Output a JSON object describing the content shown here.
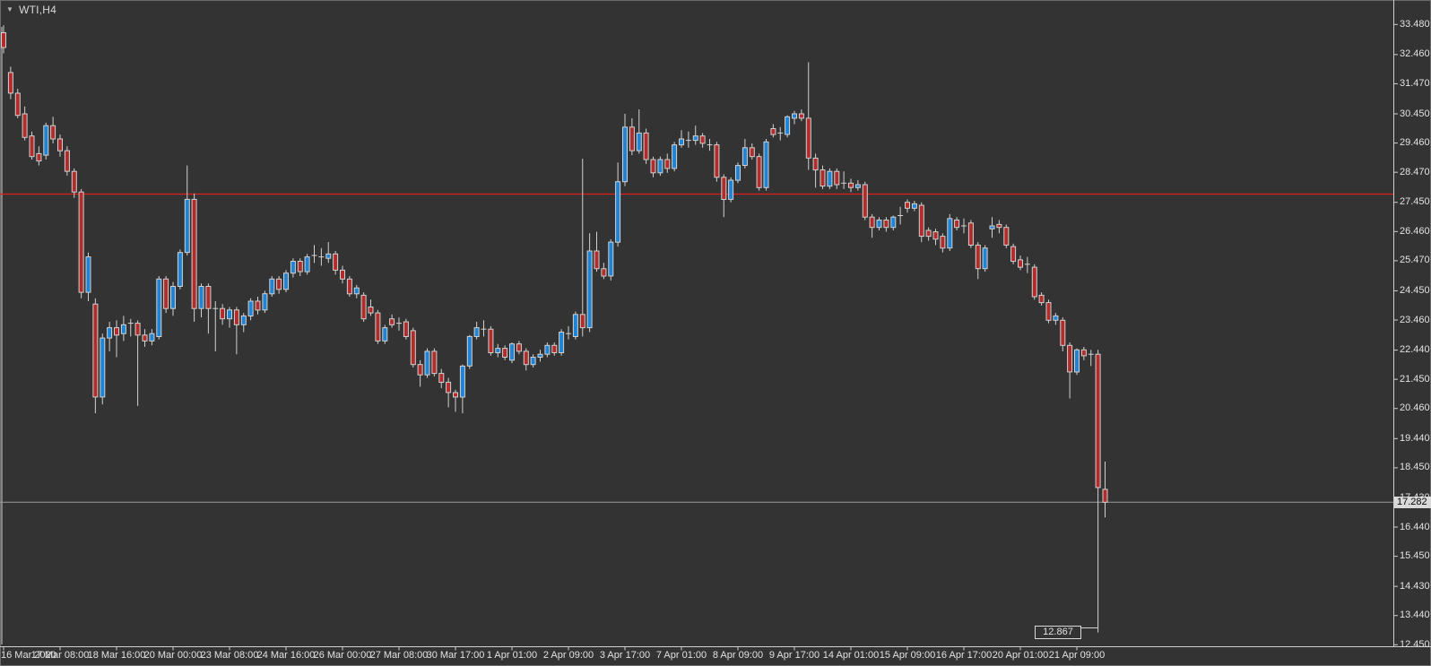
{
  "window": {
    "symbol_label": "WTI,H4",
    "dropdown_icon": "▼"
  },
  "colors": {
    "background": "#333333",
    "bull_body": "#1f83d6",
    "bear_body": "#b22c2c",
    "wick": "#d2d2d2",
    "axis_line": "#cfcfcf",
    "axis_text": "#e2e2e2",
    "red_line": "#e01f1f",
    "bid_line": "#9a9a9a",
    "badge_bg": "#d9d9d9",
    "badge_text": "#000000"
  },
  "price_axis": {
    "labels": [
      "33.480",
      "32.460",
      "31.470",
      "30.450",
      "29.460",
      "28.470",
      "27.450",
      "26.460",
      "25.470",
      "24.450",
      "23.460",
      "22.440",
      "21.450",
      "20.460",
      "19.440",
      "18.450",
      "17.430",
      "16.440",
      "15.450",
      "14.430",
      "13.440",
      "12.450"
    ]
  },
  "time_axis": {
    "labels": [
      "16 Mar 2020",
      "17 Mar 08:00",
      "18 Mar 16:00",
      "20 Mar 00:00",
      "23 Mar 08:00",
      "24 Mar 16:00",
      "26 Mar 00:00",
      "27 Mar 08:00",
      "30 Mar 17:00",
      "1 Apr 01:00",
      "2 Apr 09:00",
      "3 Apr 17:00",
      "7 Apr 01:00",
      "8 Apr 09:00",
      "9 Apr 17:00",
      "14 Apr 01:00",
      "15 Apr 09:00",
      "16 Apr 17:00",
      "20 Apr 01:00",
      "21 Apr 09:00"
    ]
  },
  "badge": {
    "value": "17.282"
  },
  "callout": {
    "value": "12.867"
  },
  "chart_data": {
    "type": "candlestick",
    "title": "WTI,H4",
    "symbol": "WTI",
    "timeframe": "H4",
    "ylim": [
      12.45,
      33.48
    ],
    "x_tick_labels": [
      "16 Mar 2020",
      "17 Mar 08:00",
      "18 Mar 16:00",
      "20 Mar 00:00",
      "23 Mar 08:00",
      "24 Mar 16:00",
      "26 Mar 00:00",
      "27 Mar 08:00",
      "30 Mar 17:00",
      "1 Apr 01:00",
      "2 Apr 09:00",
      "3 Apr 17:00",
      "7 Apr 01:00",
      "8 Apr 09:00",
      "9 Apr 17:00",
      "14 Apr 01:00",
      "15 Apr 09:00",
      "16 Apr 17:00",
      "20 Apr 01:00",
      "21 Apr 09:00"
    ],
    "bars_per_tick": 8,
    "annotations": {
      "horizontal_red_line_price": 27.73,
      "bid_line_price": 17.282,
      "current_price": "17.282",
      "lowest_wick_label": "12.867",
      "lowest_wick_price": 12.867
    },
    "candles_ohlc": [
      [
        33.2,
        33.45,
        32.5,
        32.7
      ],
      [
        31.85,
        32.05,
        30.95,
        31.15
      ],
      [
        31.15,
        31.3,
        30.3,
        30.4
      ],
      [
        30.45,
        30.7,
        29.55,
        29.65
      ],
      [
        29.7,
        29.85,
        28.9,
        29.0
      ],
      [
        29.1,
        29.35,
        28.7,
        28.85
      ],
      [
        29.05,
        30.15,
        28.9,
        30.05
      ],
      [
        30.05,
        30.35,
        29.45,
        29.6
      ],
      [
        29.6,
        29.75,
        29.0,
        29.2
      ],
      [
        29.2,
        29.35,
        28.35,
        28.5
      ],
      [
        28.5,
        28.6,
        27.6,
        27.8
      ],
      [
        27.8,
        27.9,
        24.2,
        24.4
      ],
      [
        24.4,
        25.75,
        24.1,
        25.6
      ],
      [
        24.0,
        24.2,
        20.3,
        20.85
      ],
      [
        20.85,
        23.0,
        20.6,
        22.85
      ],
      [
        22.85,
        23.4,
        22.4,
        23.2
      ],
      [
        23.2,
        23.45,
        22.2,
        22.95
      ],
      [
        23.0,
        23.6,
        22.75,
        23.3
      ],
      [
        23.3,
        23.5,
        22.9,
        23.35
      ],
      [
        23.35,
        23.45,
        20.55,
        22.95
      ],
      [
        22.95,
        23.15,
        22.55,
        22.75
      ],
      [
        22.75,
        23.15,
        22.6,
        23.0
      ],
      [
        22.9,
        24.95,
        22.8,
        24.85
      ],
      [
        24.85,
        24.95,
        23.7,
        23.85
      ],
      [
        23.85,
        24.75,
        23.6,
        24.6
      ],
      [
        24.6,
        25.85,
        24.5,
        25.75
      ],
      [
        25.75,
        28.7,
        25.65,
        27.55
      ],
      [
        27.55,
        27.75,
        23.4,
        23.85
      ],
      [
        23.85,
        24.7,
        23.55,
        24.6
      ],
      [
        24.6,
        24.7,
        23.0,
        23.85
      ],
      [
        23.9,
        24.1,
        22.4,
        23.85
      ],
      [
        23.85,
        24.0,
        23.3,
        23.5
      ],
      [
        23.5,
        23.9,
        23.2,
        23.8
      ],
      [
        23.8,
        23.9,
        22.3,
        23.3
      ],
      [
        23.3,
        23.7,
        23.05,
        23.6
      ],
      [
        23.6,
        24.2,
        23.45,
        24.1
      ],
      [
        24.1,
        24.25,
        23.65,
        23.8
      ],
      [
        23.8,
        24.45,
        23.7,
        24.35
      ],
      [
        24.35,
        24.95,
        24.25,
        24.85
      ],
      [
        24.85,
        24.95,
        24.35,
        24.5
      ],
      [
        24.5,
        25.15,
        24.4,
        25.05
      ],
      [
        25.05,
        25.55,
        24.9,
        25.45
      ],
      [
        25.45,
        25.55,
        24.95,
        25.1
      ],
      [
        25.1,
        25.7,
        25.0,
        25.6
      ],
      [
        25.6,
        26.0,
        25.4,
        25.65
      ],
      [
        25.65,
        25.9,
        25.3,
        25.6
      ],
      [
        25.55,
        26.1,
        25.4,
        25.7
      ],
      [
        25.7,
        25.8,
        25.0,
        25.15
      ],
      [
        25.15,
        25.3,
        24.7,
        24.85
      ],
      [
        24.85,
        24.95,
        24.25,
        24.35
      ],
      [
        24.35,
        24.65,
        24.2,
        24.55
      ],
      [
        24.3,
        24.4,
        23.4,
        23.5
      ],
      [
        23.9,
        24.15,
        23.6,
        23.7
      ],
      [
        23.7,
        23.8,
        22.65,
        22.75
      ],
      [
        22.75,
        23.3,
        22.65,
        23.2
      ],
      [
        23.5,
        23.65,
        23.2,
        23.3
      ],
      [
        23.3,
        23.55,
        23.1,
        23.35
      ],
      [
        23.4,
        23.5,
        22.8,
        22.9
      ],
      [
        23.1,
        23.2,
        21.85,
        21.95
      ],
      [
        21.95,
        22.1,
        21.2,
        21.6
      ],
      [
        21.6,
        22.5,
        21.5,
        22.4
      ],
      [
        22.4,
        22.5,
        21.55,
        21.65
      ],
      [
        21.65,
        21.8,
        21.15,
        21.35
      ],
      [
        21.35,
        21.5,
        20.5,
        21.0
      ],
      [
        21.0,
        21.1,
        20.35,
        20.85
      ],
      [
        20.85,
        21.95,
        20.3,
        21.9
      ],
      [
        21.9,
        22.95,
        21.8,
        22.9
      ],
      [
        22.9,
        23.4,
        22.8,
        23.2
      ],
      [
        23.2,
        23.45,
        22.9,
        23.15
      ],
      [
        23.15,
        23.25,
        22.25,
        22.35
      ],
      [
        22.35,
        22.65,
        22.2,
        22.5
      ],
      [
        22.5,
        22.6,
        22.1,
        22.2
      ],
      [
        22.1,
        22.7,
        22.0,
        22.65
      ],
      [
        22.65,
        22.75,
        22.3,
        22.4
      ],
      [
        22.4,
        22.5,
        21.75,
        21.95
      ],
      [
        21.95,
        22.3,
        21.85,
        22.2
      ],
      [
        22.2,
        22.45,
        22.05,
        22.3
      ],
      [
        22.3,
        22.7,
        22.2,
        22.6
      ],
      [
        22.6,
        22.7,
        22.25,
        22.35
      ],
      [
        22.35,
        23.15,
        22.25,
        23.05
      ],
      [
        23.05,
        23.25,
        22.8,
        23.0
      ],
      [
        22.9,
        23.75,
        22.8,
        23.65
      ],
      [
        23.65,
        28.93,
        22.9,
        23.2
      ],
      [
        23.2,
        26.4,
        23.05,
        25.8
      ],
      [
        25.8,
        26.45,
        25.1,
        25.2
      ],
      [
        25.2,
        25.4,
        24.85,
        24.95
      ],
      [
        24.95,
        26.2,
        24.8,
        26.1
      ],
      [
        26.1,
        28.8,
        25.95,
        28.15
      ],
      [
        28.15,
        30.45,
        28.0,
        30.0
      ],
      [
        30.0,
        30.3,
        29.05,
        29.2
      ],
      [
        29.2,
        30.6,
        29.1,
        29.8
      ],
      [
        29.8,
        29.95,
        28.75,
        28.9
      ],
      [
        28.9,
        29.0,
        28.3,
        28.45
      ],
      [
        28.45,
        29.0,
        28.35,
        28.9
      ],
      [
        28.9,
        29.1,
        28.45,
        28.6
      ],
      [
        28.6,
        29.5,
        28.5,
        29.4
      ],
      [
        29.4,
        29.9,
        29.3,
        29.6
      ],
      [
        29.6,
        29.85,
        29.3,
        29.55
      ],
      [
        29.55,
        30.05,
        29.4,
        29.7
      ],
      [
        29.7,
        29.8,
        29.3,
        29.45
      ],
      [
        29.45,
        29.6,
        29.2,
        29.4
      ],
      [
        29.4,
        29.5,
        28.15,
        28.3
      ],
      [
        28.3,
        28.4,
        26.95,
        27.55
      ],
      [
        27.55,
        28.3,
        27.45,
        28.2
      ],
      [
        28.2,
        28.8,
        28.1,
        28.7
      ],
      [
        28.7,
        29.6,
        28.6,
        29.3
      ],
      [
        29.3,
        29.45,
        28.9,
        29.0
      ],
      [
        29.0,
        29.1,
        27.85,
        27.95
      ],
      [
        27.95,
        29.6,
        27.85,
        29.5
      ],
      [
        29.95,
        30.1,
        29.65,
        29.75
      ],
      [
        29.75,
        30.0,
        29.55,
        29.8
      ],
      [
        29.75,
        30.4,
        29.65,
        30.35
      ],
      [
        30.3,
        30.55,
        30.1,
        30.45
      ],
      [
        30.45,
        30.6,
        30.2,
        30.3
      ],
      [
        30.3,
        32.2,
        28.55,
        28.95
      ],
      [
        28.95,
        29.1,
        27.95,
        28.55
      ],
      [
        28.55,
        28.7,
        27.9,
        28.0
      ],
      [
        28.0,
        28.6,
        27.9,
        28.5
      ],
      [
        28.5,
        28.6,
        27.9,
        28.05
      ],
      [
        28.05,
        28.5,
        27.9,
        28.1
      ],
      [
        28.1,
        28.25,
        27.8,
        27.95
      ],
      [
        27.95,
        28.2,
        27.85,
        28.05
      ],
      [
        28.05,
        28.15,
        26.85,
        26.95
      ],
      [
        26.95,
        27.05,
        26.25,
        26.6
      ],
      [
        26.6,
        26.95,
        26.5,
        26.85
      ],
      [
        26.85,
        26.95,
        26.45,
        26.6
      ],
      [
        26.6,
        27.0,
        26.5,
        26.95
      ],
      [
        26.95,
        27.3,
        26.7,
        27.0
      ],
      [
        27.45,
        27.55,
        27.1,
        27.25
      ],
      [
        27.25,
        27.5,
        27.15,
        27.4
      ],
      [
        27.35,
        27.45,
        26.1,
        26.3
      ],
      [
        26.5,
        26.6,
        26.15,
        26.3
      ],
      [
        26.45,
        26.55,
        26.0,
        26.2
      ],
      [
        26.3,
        26.4,
        25.75,
        25.9
      ],
      [
        25.9,
        27.05,
        25.8,
        26.9
      ],
      [
        26.85,
        26.95,
        26.5,
        26.6
      ],
      [
        26.7,
        26.9,
        26.4,
        26.65
      ],
      [
        26.75,
        26.85,
        25.9,
        26.0
      ],
      [
        26.0,
        26.1,
        24.85,
        25.2
      ],
      [
        25.2,
        26.0,
        25.1,
        25.9
      ],
      [
        26.55,
        26.95,
        26.25,
        26.65
      ],
      [
        26.7,
        26.85,
        26.4,
        26.6
      ],
      [
        26.6,
        26.7,
        25.9,
        26.0
      ],
      [
        25.95,
        26.05,
        25.35,
        25.45
      ],
      [
        25.5,
        25.65,
        25.15,
        25.25
      ],
      [
        25.3,
        25.6,
        25.05,
        25.35
      ],
      [
        25.25,
        25.35,
        24.15,
        24.25
      ],
      [
        24.3,
        24.4,
        23.95,
        24.05
      ],
      [
        24.05,
        24.15,
        23.35,
        23.45
      ],
      [
        23.45,
        23.7,
        23.3,
        23.6
      ],
      [
        23.45,
        23.55,
        22.4,
        22.6
      ],
      [
        22.6,
        22.7,
        20.8,
        21.7
      ],
      [
        21.7,
        22.5,
        21.6,
        22.45
      ],
      [
        22.45,
        22.55,
        22.1,
        22.25
      ],
      [
        22.25,
        22.45,
        21.9,
        22.3
      ],
      [
        22.3,
        22.45,
        12.867,
        17.78
      ],
      [
        17.72,
        18.66,
        16.77,
        17.282
      ]
    ]
  }
}
